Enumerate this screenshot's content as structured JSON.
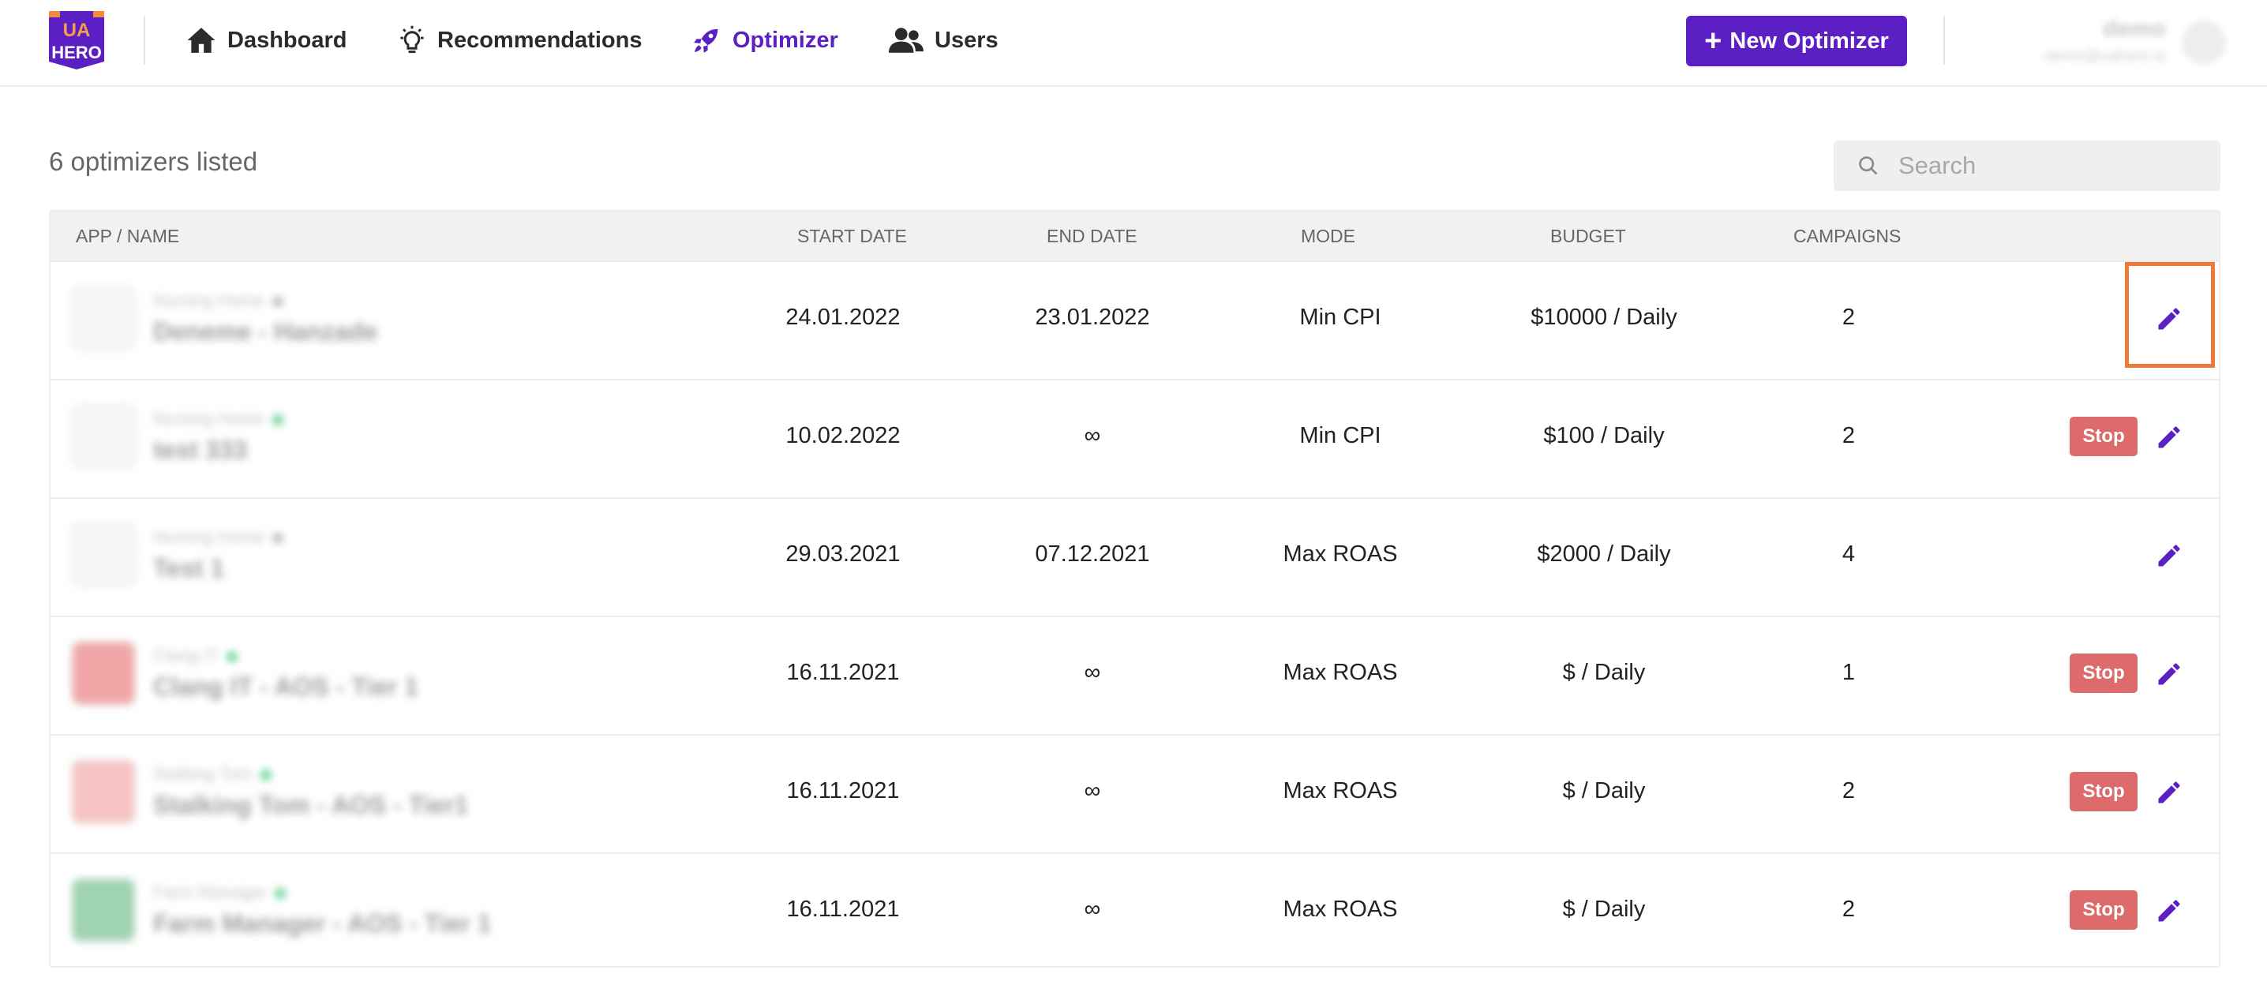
{
  "header": {
    "logo_text": "UA HERO",
    "nav": [
      {
        "label": "Dashboard",
        "icon": "home-icon"
      },
      {
        "label": "Recommendations",
        "icon": "lightbulb-icon"
      },
      {
        "label": "Optimizer",
        "icon": "rocket-icon",
        "active": true
      },
      {
        "label": "Users",
        "icon": "users-icon"
      }
    ],
    "new_button_label": "New Optimizer",
    "user": {
      "name": "demo",
      "email": "demo@uahero.io"
    }
  },
  "list": {
    "count_label": "6 optimizers listed",
    "search_placeholder": "Search"
  },
  "table": {
    "columns": [
      "APP / NAME",
      "START DATE",
      "END DATE",
      "MODE",
      "BUDGET",
      "CAMPAIGNS"
    ],
    "rows": [
      {
        "app": "Nursing Home",
        "name": "Deneme - Hanzade",
        "start": "24.01.2022",
        "end": "23.01.2022",
        "mode": "Min CPI",
        "budget": "$10000 / Daily",
        "campaigns": "2",
        "stop": false,
        "thumb_color": "#f6f6f6",
        "status_color": "#bdbdbd"
      },
      {
        "app": "Nursing Home",
        "name": "test 333",
        "start": "10.02.2022",
        "end": "∞",
        "mode": "Min CPI",
        "budget": "$100 / Daily",
        "campaigns": "2",
        "stop": true,
        "thumb_color": "#f6f6f6",
        "status_color": "#6fd39a"
      },
      {
        "app": "Nursing Home",
        "name": "Test 1",
        "start": "29.03.2021",
        "end": "07.12.2021",
        "mode": "Max ROAS",
        "budget": "$2000 / Daily",
        "campaigns": "4",
        "stop": false,
        "thumb_color": "#f6f6f6",
        "status_color": "#bdbdbd"
      },
      {
        "app": "Clang IT",
        "name": "Clang IT - AOS - Tier 1",
        "start": "16.11.2021",
        "end": "∞",
        "mode": "Max ROAS",
        "budget": "$ / Daily",
        "campaigns": "1",
        "stop": true,
        "thumb_color": "#f1a7a7",
        "status_color": "#6fd39a"
      },
      {
        "app": "Stalking Tom",
        "name": "Stalking Tom - AOS - Tier1",
        "start": "16.11.2021",
        "end": "∞",
        "mode": "Max ROAS",
        "budget": "$ / Daily",
        "campaigns": "2",
        "stop": true,
        "thumb_color": "#f6c3c3",
        "status_color": "#6fd39a"
      },
      {
        "app": "Farm Manager",
        "name": "Farm Manager - AOS - Tier 1",
        "start": "16.11.2021",
        "end": "∞",
        "mode": "Max ROAS",
        "budget": "$ / Daily",
        "campaigns": "2",
        "stop": true,
        "thumb_color": "#9fd3b4",
        "status_color": "#6fd39a"
      }
    ],
    "stop_label": "Stop"
  },
  "colors": {
    "accent": "#5b1fc4",
    "stop": "#de6b6b",
    "highlight": "#ee7a3a"
  }
}
